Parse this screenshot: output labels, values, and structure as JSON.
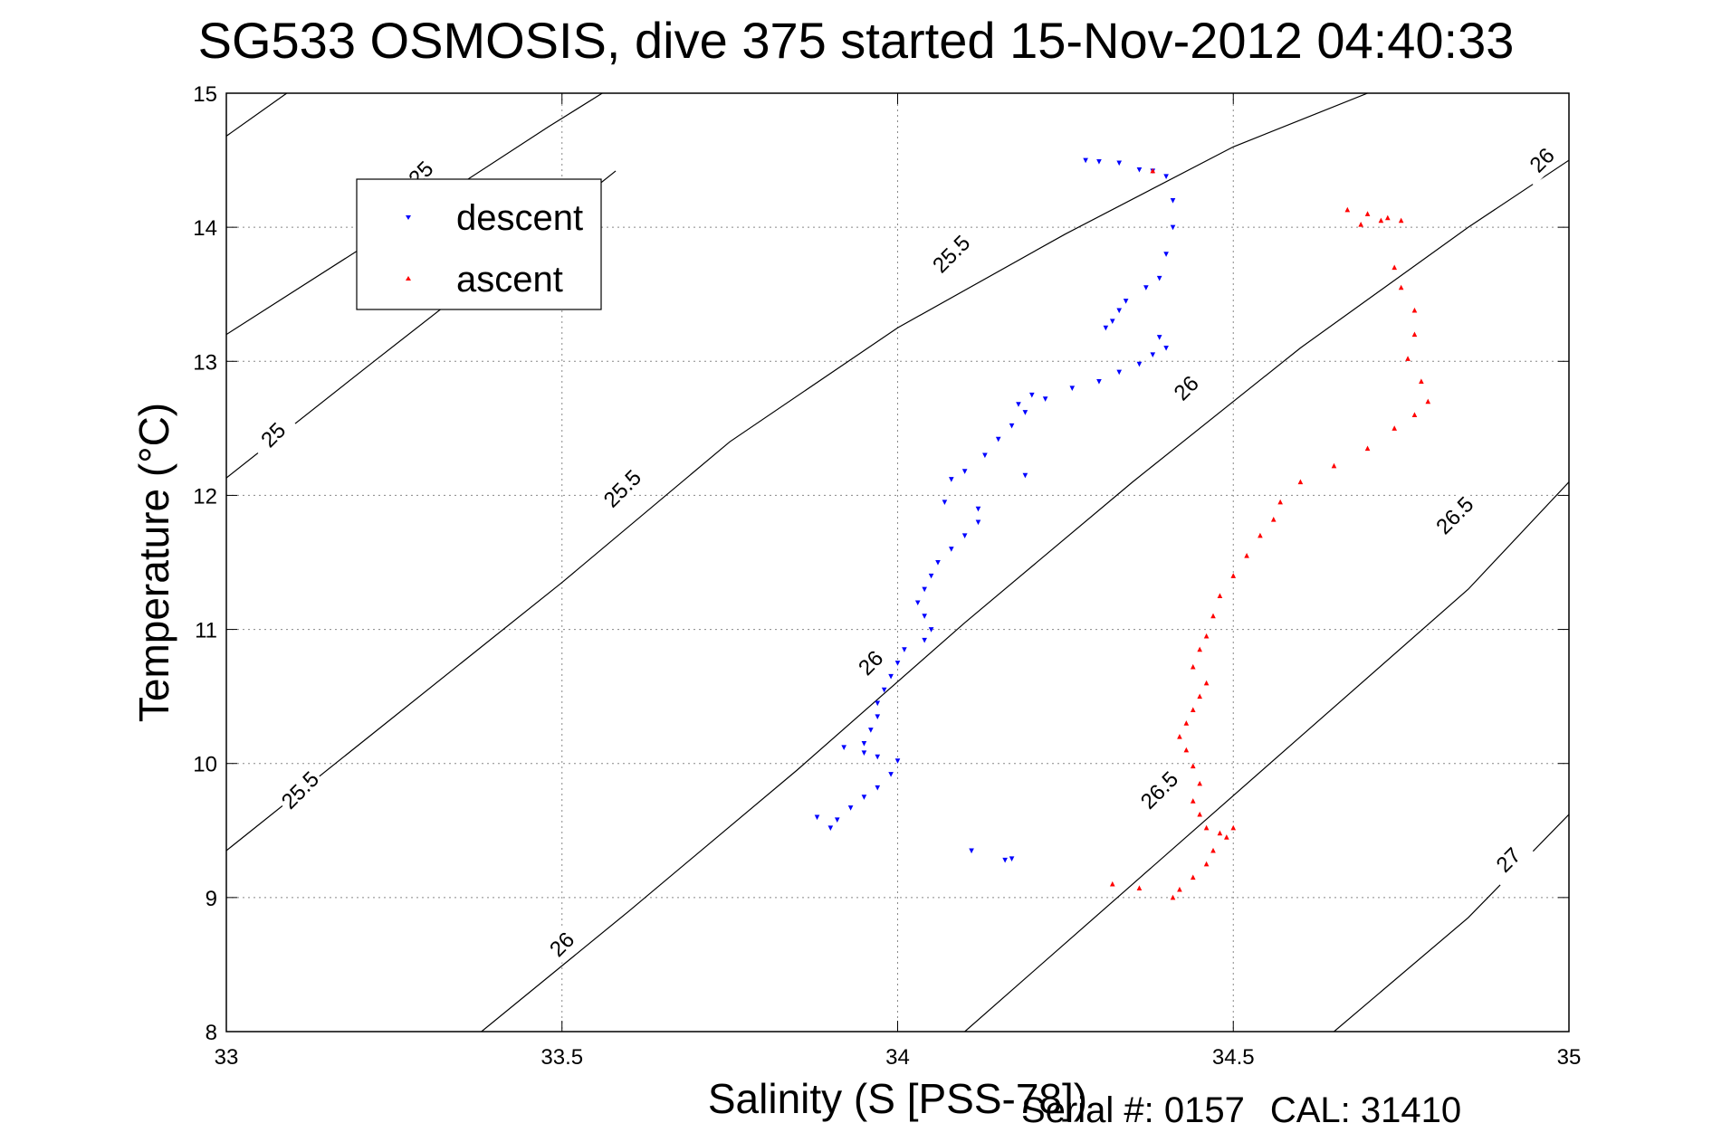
{
  "title": "SG533 OSMOSIS, dive 375 started 15-Nov-2012 04:40:33",
  "footer": {
    "serial": "Serial #: 0157",
    "cal": "CAL: 31410"
  },
  "chart_data": {
    "type": "scatter",
    "title": "SG533 OSMOSIS, dive 375 started 15-Nov-2012 04:40:33",
    "xlabel": "Salinity (S [PSS-78])",
    "ylabel": "Temperature (°C)",
    "xlim": [
      33,
      35
    ],
    "ylim": [
      8,
      15
    ],
    "xticks": [
      33,
      33.5,
      34,
      34.5,
      35
    ],
    "xtick_labels": [
      "33",
      "33.5",
      "34",
      "34.5",
      "35"
    ],
    "yticks": [
      8,
      9,
      10,
      11,
      12,
      13,
      14,
      15
    ],
    "ytick_labels": [
      "8",
      "9",
      "10",
      "11",
      "12",
      "13",
      "14",
      "15"
    ],
    "grid": true,
    "legend_position": "top-left",
    "series": [
      {
        "name": "descent",
        "color": "#0000ff",
        "marker": "triangle-down",
        "points": [
          [
            34.28,
            14.5
          ],
          [
            34.3,
            14.49
          ],
          [
            34.33,
            14.48
          ],
          [
            34.36,
            14.43
          ],
          [
            34.38,
            14.42
          ],
          [
            34.4,
            14.38
          ],
          [
            34.41,
            14.2
          ],
          [
            34.41,
            14.0
          ],
          [
            34.4,
            13.8
          ],
          [
            34.39,
            13.62
          ],
          [
            34.37,
            13.55
          ],
          [
            34.34,
            13.45
          ],
          [
            34.33,
            13.38
          ],
          [
            34.32,
            13.3
          ],
          [
            34.31,
            13.25
          ],
          [
            34.39,
            13.18
          ],
          [
            34.4,
            13.1
          ],
          [
            34.38,
            13.05
          ],
          [
            34.36,
            12.98
          ],
          [
            34.33,
            12.92
          ],
          [
            34.3,
            12.85
          ],
          [
            34.26,
            12.8
          ],
          [
            34.22,
            12.72
          ],
          [
            34.19,
            12.62
          ],
          [
            34.17,
            12.52
          ],
          [
            34.15,
            12.42
          ],
          [
            34.13,
            12.3
          ],
          [
            34.1,
            12.18
          ],
          [
            34.08,
            12.12
          ],
          [
            34.07,
            11.95
          ],
          [
            34.12,
            11.9
          ],
          [
            34.12,
            11.8
          ],
          [
            34.1,
            11.7
          ],
          [
            34.08,
            11.6
          ],
          [
            34.06,
            11.5
          ],
          [
            34.05,
            11.4
          ],
          [
            34.04,
            11.3
          ],
          [
            34.03,
            11.2
          ],
          [
            34.04,
            11.1
          ],
          [
            34.05,
            11.0
          ],
          [
            34.04,
            10.92
          ],
          [
            34.01,
            10.85
          ],
          [
            34.0,
            10.75
          ],
          [
            33.99,
            10.65
          ],
          [
            33.98,
            10.55
          ],
          [
            33.97,
            10.45
          ],
          [
            33.97,
            10.35
          ],
          [
            33.96,
            10.25
          ],
          [
            33.95,
            10.15
          ],
          [
            33.95,
            10.08
          ],
          [
            33.97,
            10.05
          ],
          [
            34.0,
            10.02
          ],
          [
            33.99,
            9.92
          ],
          [
            33.97,
            9.82
          ],
          [
            33.95,
            9.75
          ],
          [
            33.93,
            9.67
          ],
          [
            33.91,
            9.58
          ],
          [
            33.9,
            9.52
          ],
          [
            33.88,
            9.6
          ],
          [
            33.92,
            10.12
          ],
          [
            34.11,
            9.35
          ],
          [
            34.16,
            9.28
          ],
          [
            34.17,
            9.29
          ],
          [
            34.19,
            12.15
          ],
          [
            34.18,
            12.68
          ],
          [
            34.2,
            12.75
          ]
        ]
      },
      {
        "name": "ascent",
        "color": "#ff0000",
        "marker": "triangle-up",
        "points": [
          [
            34.67,
            14.13
          ],
          [
            34.7,
            14.1
          ],
          [
            34.72,
            14.05
          ],
          [
            34.69,
            14.02
          ],
          [
            34.73,
            14.07
          ],
          [
            34.75,
            14.05
          ],
          [
            34.74,
            13.7
          ],
          [
            34.75,
            13.55
          ],
          [
            34.77,
            13.38
          ],
          [
            34.77,
            13.2
          ],
          [
            34.76,
            13.02
          ],
          [
            34.78,
            12.85
          ],
          [
            34.79,
            12.7
          ],
          [
            34.77,
            12.6
          ],
          [
            34.74,
            12.5
          ],
          [
            34.7,
            12.35
          ],
          [
            34.65,
            12.22
          ],
          [
            34.6,
            12.1
          ],
          [
            34.57,
            11.95
          ],
          [
            34.56,
            11.82
          ],
          [
            34.54,
            11.7
          ],
          [
            34.52,
            11.55
          ],
          [
            34.5,
            11.4
          ],
          [
            34.48,
            11.25
          ],
          [
            34.47,
            11.1
          ],
          [
            34.46,
            10.95
          ],
          [
            34.45,
            10.85
          ],
          [
            34.44,
            10.72
          ],
          [
            34.46,
            10.6
          ],
          [
            34.45,
            10.5
          ],
          [
            34.44,
            10.4
          ],
          [
            34.43,
            10.3
          ],
          [
            34.42,
            10.2
          ],
          [
            34.43,
            10.1
          ],
          [
            34.44,
            9.98
          ],
          [
            34.45,
            9.85
          ],
          [
            34.44,
            9.72
          ],
          [
            34.45,
            9.62
          ],
          [
            34.46,
            9.52
          ],
          [
            34.48,
            9.48
          ],
          [
            34.5,
            9.52
          ],
          [
            34.49,
            9.45
          ],
          [
            34.47,
            9.35
          ],
          [
            34.46,
            9.25
          ],
          [
            34.44,
            9.15
          ],
          [
            34.42,
            9.06
          ],
          [
            34.41,
            9.0
          ],
          [
            34.36,
            9.07
          ],
          [
            34.32,
            9.1
          ],
          [
            34.38,
            14.42
          ]
        ]
      }
    ],
    "density_contours": [
      {
        "label": "25",
        "values_label": [
          "25",
          "25"
        ]
      },
      {
        "label": "25.5",
        "values_label": [
          "25.5",
          "25.5",
          "25.5"
        ]
      },
      {
        "label": "26",
        "values_label": [
          "26",
          "26",
          "26",
          "26"
        ]
      },
      {
        "label": "26.5",
        "values_label": [
          "26.5",
          "26.5"
        ]
      },
      {
        "label": "27",
        "values_label": [
          "27"
        ]
      }
    ],
    "contour_lines": [
      {
        "label": "25",
        "points": [
          [
            33.0,
            14.68
          ],
          [
            33.09,
            15.0
          ]
        ]
      },
      {
        "label": "25",
        "points": [
          [
            33.0,
            12.13
          ],
          [
            33.22,
            13.0
          ],
          [
            33.44,
            13.86
          ],
          [
            33.58,
            14.42
          ]
        ]
      },
      {
        "label": "25.5",
        "points": [
          [
            33.0,
            13.2
          ],
          [
            33.25,
            14.0
          ],
          [
            33.48,
            14.75
          ],
          [
            33.56,
            15.0
          ]
        ]
      },
      {
        "label": "25.5",
        "points": [
          [
            33.0,
            9.35
          ],
          [
            33.25,
            10.35
          ],
          [
            33.5,
            11.35
          ],
          [
            33.75,
            12.4
          ],
          [
            34.0,
            13.25
          ],
          [
            34.25,
            13.95
          ],
          [
            34.5,
            14.6
          ],
          [
            34.7,
            15.0
          ]
        ]
      },
      {
        "label": "26",
        "points": [
          [
            33.38,
            8.0
          ],
          [
            33.6,
            8.9
          ],
          [
            33.85,
            9.95
          ],
          [
            34.1,
            11.05
          ],
          [
            34.35,
            12.1
          ],
          [
            34.6,
            13.1
          ],
          [
            34.85,
            14.0
          ],
          [
            35.0,
            14.5
          ]
        ]
      },
      {
        "label": "26.5",
        "points": [
          [
            34.1,
            8.0
          ],
          [
            34.35,
            9.1
          ],
          [
            34.6,
            10.2
          ],
          [
            34.85,
            11.3
          ],
          [
            35.0,
            12.1
          ]
        ]
      },
      {
        "label": "27",
        "points": [
          [
            34.65,
            8.0
          ],
          [
            34.85,
            8.85
          ],
          [
            35.0,
            9.62
          ]
        ]
      }
    ],
    "contour_labels": [
      {
        "text": "25",
        "at": [
          33.29,
          14.4
        ]
      },
      {
        "text": "25",
        "at": [
          33.07,
          12.45
        ]
      },
      {
        "text": "25.5",
        "at": [
          34.08,
          13.8
        ]
      },
      {
        "text": "25.5",
        "at": [
          33.59,
          12.05
        ]
      },
      {
        "text": "25.5",
        "at": [
          33.11,
          9.8
        ]
      },
      {
        "text": "26",
        "at": [
          34.43,
          12.8
        ]
      },
      {
        "text": "26",
        "at": [
          33.96,
          10.75
        ]
      },
      {
        "text": "26",
        "at": [
          33.5,
          8.65
        ]
      },
      {
        "text": "26",
        "at": [
          34.96,
          14.5
        ]
      },
      {
        "text": "26.5",
        "at": [
          34.83,
          11.85
        ]
      },
      {
        "text": "26.5",
        "at": [
          34.39,
          9.8
        ]
      },
      {
        "text": "27",
        "at": [
          34.91,
          9.28
        ]
      }
    ]
  }
}
